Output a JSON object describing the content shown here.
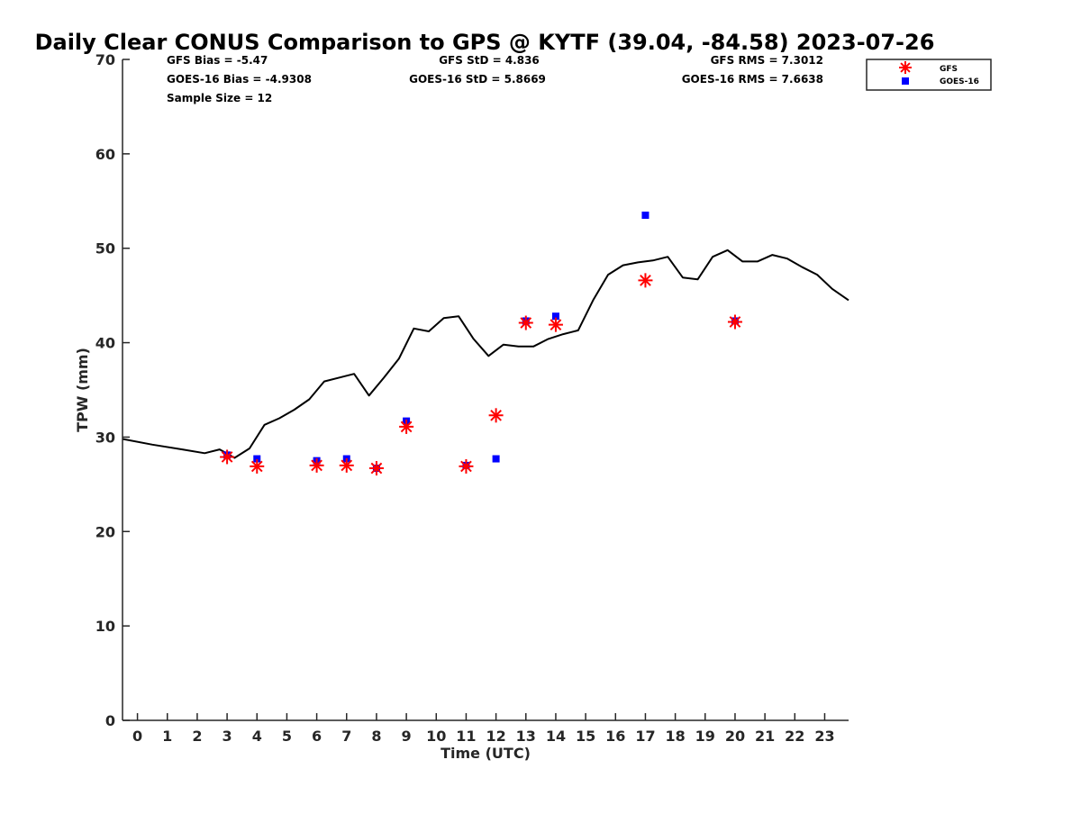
{
  "chart_data": {
    "type": "scatter",
    "title": "Daily Clear CONUS Comparison to GPS @ KYTF (39.04, -84.58) 2023-07-26",
    "xlabel": "Time (UTC)",
    "ylabel": "TPW (mm)",
    "xlim": [
      -0.5,
      23.8
    ],
    "ylim": [
      0,
      70
    ],
    "x_ticks": [
      0,
      1,
      2,
      3,
      4,
      5,
      6,
      7,
      8,
      9,
      10,
      11,
      12,
      13,
      14,
      15,
      16,
      17,
      18,
      19,
      20,
      21,
      22,
      23
    ],
    "x_tick_labels": [
      "0",
      "1",
      "2",
      "3",
      "4",
      "5",
      "6",
      "7",
      "8",
      "9",
      "10",
      "11",
      "12",
      "13",
      "14",
      "15",
      "16",
      "17",
      "18",
      "19",
      "20",
      "21",
      "22",
      "23"
    ],
    "y_ticks": [
      0,
      10,
      20,
      30,
      40,
      50,
      60,
      70
    ],
    "y_tick_labels": [
      "0",
      "10",
      "20",
      "30",
      "40",
      "50",
      "60",
      "70"
    ],
    "grid": false,
    "legend_position": "top-right",
    "stats": {
      "gfs_bias": "GFS Bias = -5.47",
      "goes_bias": "GOES-16 Bias = -4.9308",
      "sample_size": "Sample Size = 12",
      "gfs_std": "GFS StD = 4.836",
      "goes_std": "GOES-16 StD = 5.8669",
      "gfs_rms": "GFS RMS = 7.3012",
      "goes_rms": "GOES-16 RMS = 7.6638"
    },
    "gps_line": {
      "color": "#000000",
      "x": [
        -0.5,
        0.5,
        1.5,
        2.25,
        2.75,
        3.25,
        3.75,
        4.25,
        4.75,
        5.25,
        5.75,
        6.25,
        7.25,
        7.75,
        8.25,
        8.75,
        9.25,
        9.75,
        10.25,
        10.75,
        11.25,
        11.75,
        12.25,
        12.75,
        13.25,
        13.75,
        14.25,
        14.75,
        15.25,
        15.75,
        16.25,
        16.75,
        17.25,
        17.75,
        18.25,
        18.75,
        19.25,
        19.75,
        20.25,
        20.75,
        21.25,
        21.75,
        22.25,
        22.75,
        23.25,
        23.8
      ],
      "y": [
        29.8,
        29.2,
        28.7,
        28.3,
        28.7,
        27.8,
        28.8,
        31.3,
        32.0,
        32.9,
        34.0,
        35.9,
        36.7,
        34.4,
        36.3,
        38.3,
        41.5,
        41.2,
        42.6,
        42.8,
        40.4,
        38.6,
        39.8,
        39.6,
        39.6,
        40.4,
        40.9,
        41.3,
        44.5,
        47.2,
        48.2,
        48.5,
        48.7,
        49.1,
        46.9,
        46.7,
        49.1,
        49.8,
        48.6,
        48.6,
        49.3,
        48.9,
        48.0,
        47.2,
        45.7,
        44.5
      ]
    },
    "series": [
      {
        "name": "GFS",
        "color": "#ff0000",
        "marker": "asterisk",
        "x": [
          3,
          4,
          6,
          7,
          8,
          9,
          11,
          12,
          13,
          14,
          17,
          20
        ],
        "y": [
          27.9,
          26.9,
          27.0,
          27.0,
          26.7,
          31.1,
          26.9,
          32.3,
          42.1,
          41.9,
          46.6,
          42.2
        ]
      },
      {
        "name": "GOES-16",
        "color": "#0000ff",
        "marker": "square",
        "x": [
          3,
          4,
          6,
          7,
          8,
          9,
          11,
          12,
          13,
          14,
          17,
          20
        ],
        "y": [
          28.1,
          27.7,
          27.5,
          27.7,
          26.7,
          31.7,
          27.0,
          27.7,
          42.3,
          42.8,
          53.5,
          42.3
        ]
      }
    ]
  }
}
